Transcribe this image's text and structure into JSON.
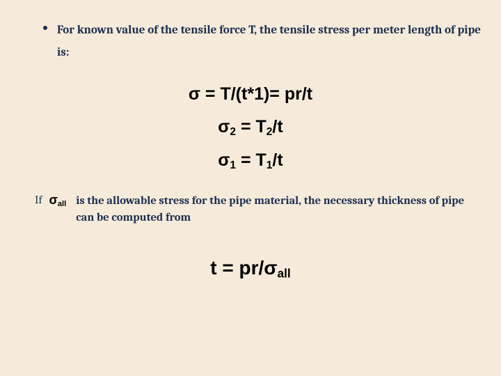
{
  "background_color": "#f6ebdb",
  "text_color": "#1b2d4f",
  "equation_color": "#000000",
  "body_font": "Cambria, Georgia, serif",
  "equation_font": "Arial, Helvetica, sans-serif",
  "bullet": {
    "text": "For known value of the tensile force T, the tensile stress per meter length of pipe is:",
    "fontsize": 17,
    "fontweight": 700
  },
  "equations": {
    "eq1": {
      "sigma": "σ",
      "eq_sign": " = ",
      "rhs1": "T/(t*1)",
      "eq_sign2": "= ",
      "rhs2": "pr/t",
      "fontsize": 25
    },
    "eq2": {
      "sigma": "σ",
      "sub": "2",
      "eq_sign": " = ",
      "T": "T",
      "Tsub": "2",
      "slash_t": "/t",
      "fontsize": 25
    },
    "eq3": {
      "sigma": "σ",
      "sub": "1",
      "eq_sign": " = ",
      "T": "T",
      "Tsub": "1",
      "slash_t": "/t",
      "fontsize": 25
    },
    "eq4": {
      "lhs": "t",
      "eq_sign": " = ",
      "rhs_num": "pr/",
      "sigma": "σ",
      "sub": "all",
      "fontsize": 28
    }
  },
  "if_block": {
    "if_label": "If",
    "sigma": "σ",
    "sigma_sub": "all",
    "text": "is the allowable stress for the pipe material, the necessary thickness of pipe can be computed from",
    "fontsize": 16.5,
    "fontweight": 700
  }
}
